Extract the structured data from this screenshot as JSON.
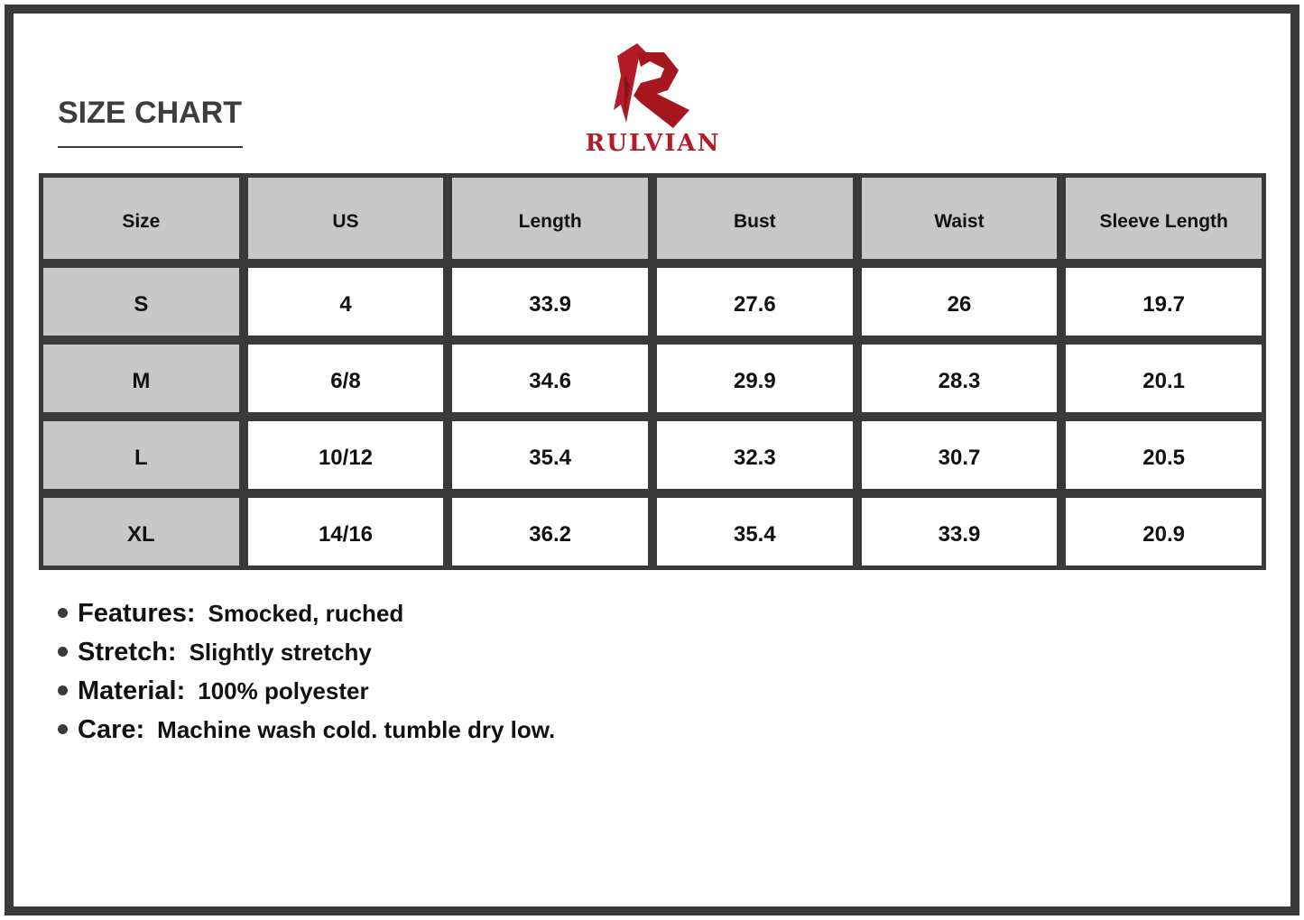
{
  "title": "SIZE CHART",
  "brand": {
    "name": "RULVIAN",
    "color": "#b31b28"
  },
  "table": {
    "headers": [
      "Size",
      "US",
      "Length",
      "Bust",
      "Waist",
      "Sleeve Length"
    ],
    "rows": [
      [
        "S",
        "4",
        "33.9",
        "27.6",
        "26",
        "19.7"
      ],
      [
        "M",
        "6/8",
        "34.6",
        "29.9",
        "28.3",
        "20.1"
      ],
      [
        "L",
        "10/12",
        "35.4",
        "32.3",
        "30.7",
        "20.5"
      ],
      [
        "XL",
        "14/16",
        "36.2",
        "35.4",
        "33.9",
        "20.9"
      ]
    ]
  },
  "notes": [
    {
      "label": "Features:",
      "value": "Smocked, ruched"
    },
    {
      "label": "Stretch:",
      "value": "Slightly stretchy"
    },
    {
      "label": "Material:",
      "value": "100% polyester"
    },
    {
      "label": "Care:",
      "value": "Machine wash cold. tumble dry low."
    }
  ]
}
